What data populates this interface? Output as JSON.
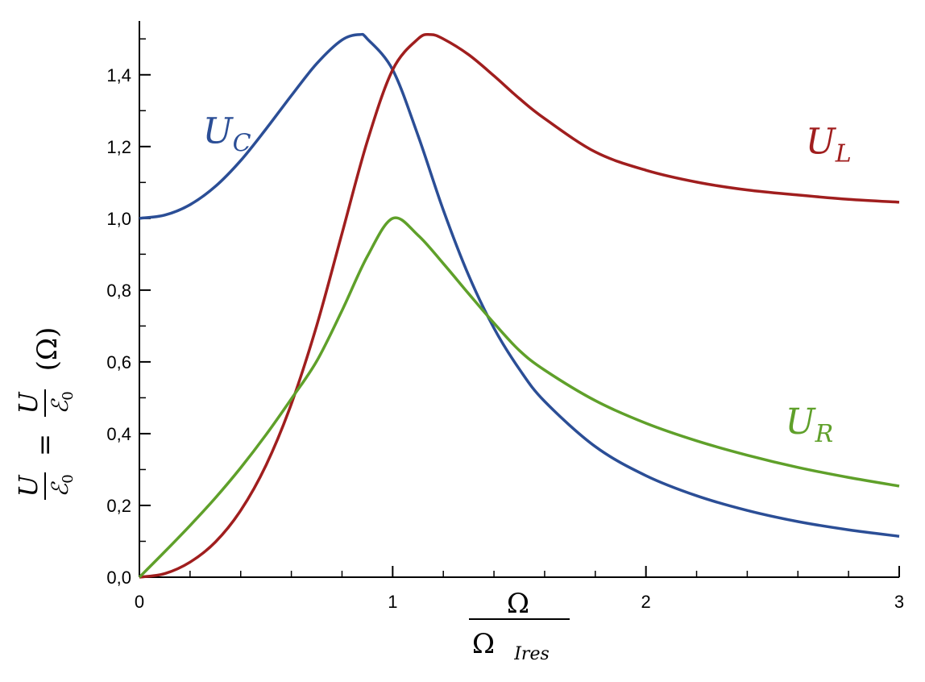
{
  "chart_data": {
    "type": "line",
    "xlabel": {
      "numerator": "Ω",
      "denominator_main": "Ω",
      "denominator_sub": "Ires"
    },
    "ylabel": {
      "frac_num": "U",
      "frac_den_main": "ℰ",
      "frac_den_sub": "0",
      "equals": "=",
      "frac2_num": "U",
      "frac2_den_main": "ℰ",
      "frac2_den_sub": "0",
      "arg": "(Ω)"
    },
    "xlim": [
      0,
      3
    ],
    "ylim": [
      0,
      1.55
    ],
    "xticks": [
      {
        "value": 0,
        "label": "0"
      },
      {
        "value": 1,
        "label": "1"
      },
      {
        "value": 2,
        "label": "2"
      },
      {
        "value": 3,
        "label": "3"
      }
    ],
    "yticks": [
      {
        "value": 0.0,
        "label": "0,0"
      },
      {
        "value": 0.2,
        "label": "0,2"
      },
      {
        "value": 0.4,
        "label": "0,4"
      },
      {
        "value": 0.6,
        "label": "0,6"
      },
      {
        "value": 0.8,
        "label": "0,8"
      },
      {
        "value": 1.0,
        "label": "1,0"
      },
      {
        "value": 1.2,
        "label": "1,2"
      },
      {
        "value": 1.4,
        "label": "1,4"
      }
    ],
    "x_minor_step": 0.2,
    "y_minor_step": 0.1,
    "grid": false,
    "series": [
      {
        "name": "UC",
        "label_main": "U",
        "label_sub": "C",
        "color": "#2b4e96",
        "x": [
          0,
          0.1,
          0.2,
          0.3,
          0.4,
          0.5,
          0.6,
          0.7,
          0.8,
          0.87,
          0.9,
          1.0,
          1.1,
          1.2,
          1.3,
          1.4,
          1.5,
          1.6,
          1.8,
          2.0,
          2.2,
          2.4,
          2.6,
          2.8,
          3.0
        ],
        "values": [
          1.0,
          1.009,
          1.038,
          1.089,
          1.161,
          1.249,
          1.342,
          1.431,
          1.497,
          1.512,
          1.5,
          1.414,
          1.231,
          1.023,
          0.841,
          0.694,
          0.58,
          0.49,
          0.364,
          0.283,
          0.227,
          0.186,
          0.155,
          0.132,
          0.114
        ]
      },
      {
        "name": "UL",
        "label_main": "U",
        "label_sub": "L",
        "color": "#a01e1e",
        "x": [
          0,
          0.1,
          0.2,
          0.3,
          0.4,
          0.5,
          0.6,
          0.7,
          0.8,
          0.9,
          1.0,
          1.1,
          1.15,
          1.2,
          1.3,
          1.4,
          1.5,
          1.6,
          1.8,
          2.0,
          2.2,
          2.4,
          2.6,
          2.8,
          3.0
        ],
        "values": [
          0,
          0.01,
          0.042,
          0.098,
          0.186,
          0.312,
          0.483,
          0.701,
          0.958,
          1.215,
          1.414,
          1.5,
          1.512,
          1.5,
          1.456,
          1.397,
          1.334,
          1.278,
          1.185,
          1.134,
          1.101,
          1.079,
          1.065,
          1.053,
          1.045
        ]
      },
      {
        "name": "UR",
        "label_main": "U",
        "label_sub": "R",
        "color": "#5fa02a",
        "x": [
          0,
          0.1,
          0.2,
          0.3,
          0.4,
          0.5,
          0.6,
          0.7,
          0.8,
          0.9,
          1.0,
          1.1,
          1.2,
          1.3,
          1.4,
          1.5,
          1.6,
          1.8,
          2.0,
          2.2,
          2.4,
          2.6,
          2.8,
          3.0
        ],
        "values": [
          0,
          0.071,
          0.144,
          0.221,
          0.305,
          0.397,
          0.497,
          0.602,
          0.743,
          0.894,
          1.0,
          0.953,
          0.874,
          0.79,
          0.708,
          0.632,
          0.577,
          0.492,
          0.429,
          0.38,
          0.34,
          0.306,
          0.278,
          0.254
        ]
      }
    ],
    "series_label_positions": [
      {
        "series": "UC",
        "x": 0.25,
        "y": 1.21
      },
      {
        "series": "UL",
        "x": 2.63,
        "y": 1.18
      },
      {
        "series": "UR",
        "x": 2.55,
        "y": 0.4
      }
    ]
  }
}
